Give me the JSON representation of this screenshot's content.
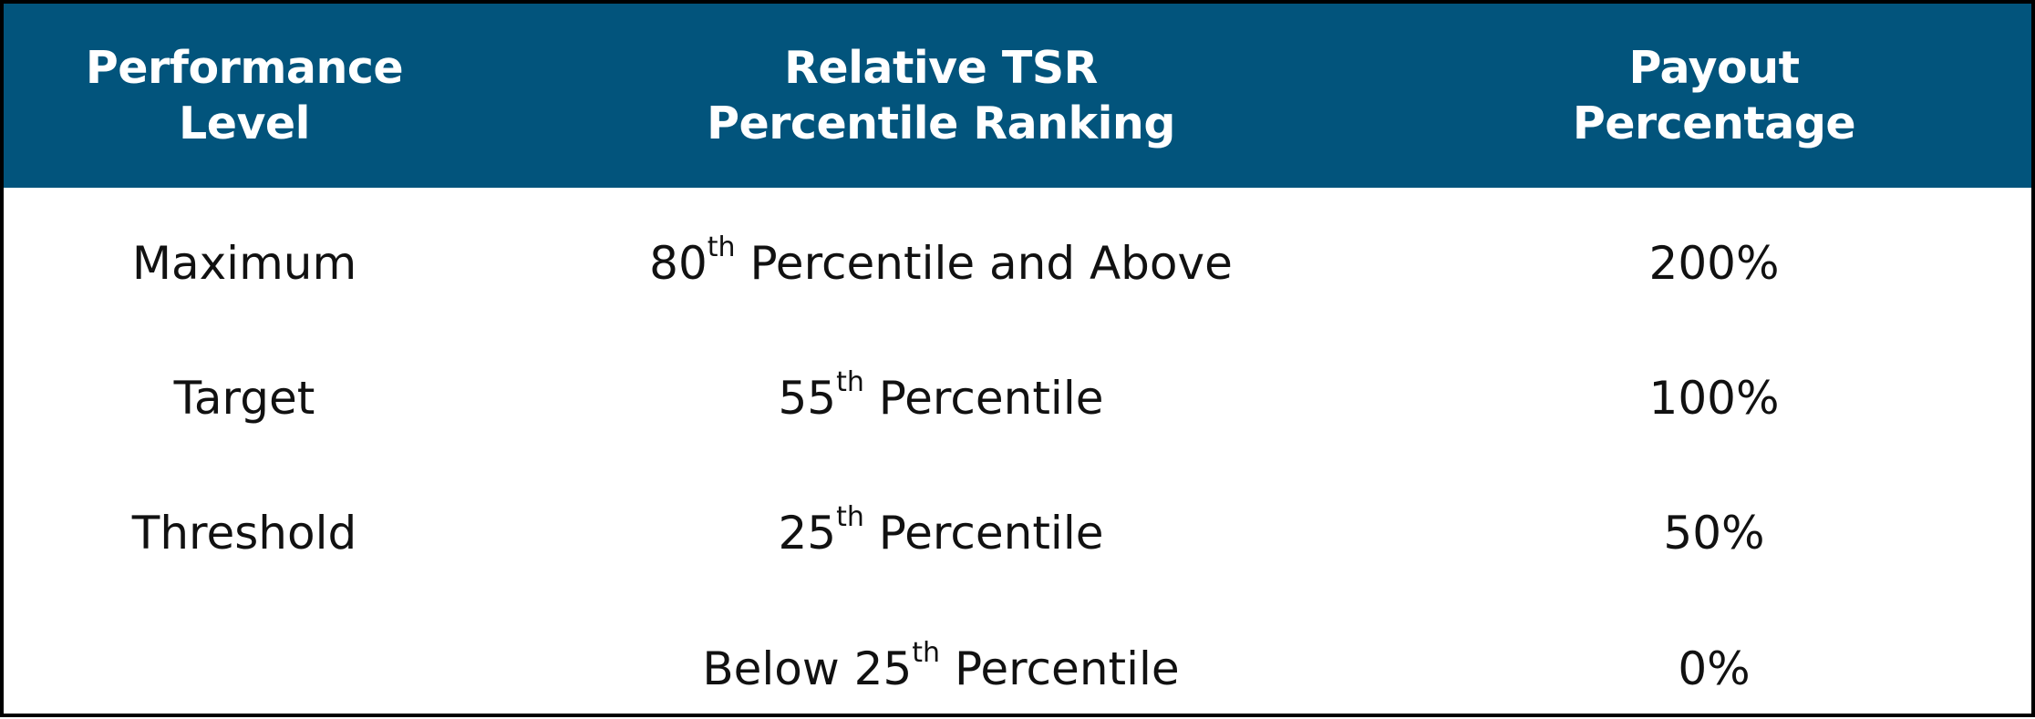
{
  "table": {
    "headers": [
      [
        "Performance",
        "Level"
      ],
      [
        "Relative TSR",
        "Percentile Ranking"
      ],
      [
        "Payout",
        "Percentage"
      ]
    ],
    "rows": [
      {
        "level": "Maximum",
        "ranking": {
          "pre": "80",
          "sup": "th",
          "post": " Percentile and Above"
        },
        "payout": "200%"
      },
      {
        "level": "Target",
        "ranking": {
          "pre": "55",
          "sup": "th",
          "post": " Percentile"
        },
        "payout": "100%"
      },
      {
        "level": "Threshold",
        "ranking": {
          "pre": "25",
          "sup": "th",
          "post": " Percentile"
        },
        "payout": "50%"
      },
      {
        "level": "",
        "ranking": {
          "pre": "Below 25",
          "sup": "th",
          "post": " Percentile"
        },
        "payout": "0%"
      }
    ]
  },
  "colors": {
    "header_background": "#02547c",
    "header_text": "#ffffff",
    "body_text": "#111111",
    "border": "#000000"
  }
}
